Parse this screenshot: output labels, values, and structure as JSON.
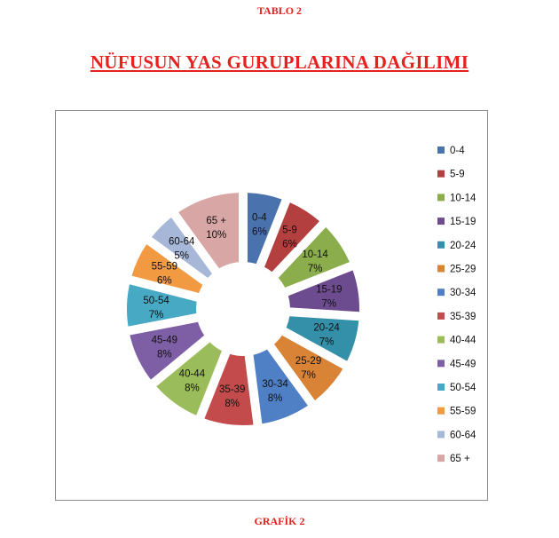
{
  "header": {
    "table_label": "TABLO 2",
    "title": "NÜFUSUN YAS GURUPLARINA  DAĞILIMI"
  },
  "footer": {
    "chart_label": "GRAFİK 2"
  },
  "chart_data": {
    "type": "pie",
    "style": "exploded doughnut",
    "legend_position": "right",
    "categories": [
      "0-4",
      "5-9",
      "10-14",
      "15-19",
      "20-24",
      "25-29",
      "30-34",
      "35-39",
      "40-44",
      "45-49",
      "50-54",
      "55-59",
      "60-64",
      "65 +"
    ],
    "percent_labels": [
      "6%",
      "6%",
      "7%",
      "7%",
      "7%",
      "7%",
      "8%",
      "8%",
      "8%",
      "8%",
      "7%",
      "6%",
      "5%",
      "10%"
    ],
    "values": [
      6,
      6,
      7,
      7,
      7,
      7,
      8,
      8,
      8,
      8,
      7,
      6,
      5,
      10
    ],
    "colors": [
      "#4a72ad",
      "#b3403f",
      "#8bad4c",
      "#6c4c8f",
      "#3490a8",
      "#d98336",
      "#4f7fc4",
      "#c34b4b",
      "#9bbc5a",
      "#7e5fa5",
      "#48a9c5",
      "#f29a42",
      "#a7b7d8",
      "#d9a6a6"
    ]
  }
}
